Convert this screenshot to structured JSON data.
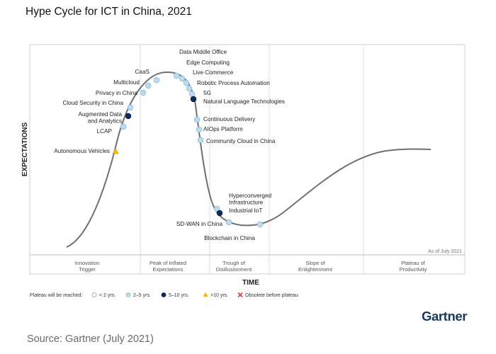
{
  "title": "Hype Cycle for ICT in China, 2021",
  "source": "Source: Gartner (July 2021)",
  "logo": "Gartner",
  "colors": {
    "lt2": "#ffffff",
    "2to5": "#b9dcf0",
    "5to10": "#0f2b5b",
    "gt10": "#f2b705",
    "obsolete": "#e23b3b",
    "curve": "#707070"
  },
  "chart_data": {
    "type": "hype-cycle",
    "title": "Hype Cycle for ICT in China, 2021",
    "xlabel": "TIME",
    "ylabel": "EXPECTATIONS",
    "as_of": "As of July 2021",
    "phases": [
      "Innovation\nTrigger",
      "Peak of Inflated\nExpectations",
      "Trough of\nDisillusionment",
      "Slope of\nEnlightenment",
      "Plateau of\nProductivity"
    ],
    "legend": {
      "title": "Plateau will be reached:",
      "items": [
        {
          "key": "lt2",
          "label": "< 2 yrs."
        },
        {
          "key": "2to5",
          "label": "2–5 yrs."
        },
        {
          "key": "5to10",
          "label": "5–10 yrs."
        },
        {
          "key": "gt10",
          "label": ">10 yrs."
        },
        {
          "key": "obsolete",
          "label": "Obsolete before plateau"
        }
      ]
    },
    "technologies": [
      {
        "name": "Autonomous Vehicles",
        "phase": "Innovation Trigger",
        "plateau": "gt10"
      },
      {
        "name": "LCAP",
        "phase": "Innovation Trigger",
        "plateau": "2to5"
      },
      {
        "name": "Augmented Data\nand Analytics",
        "phase": "Innovation Trigger",
        "plateau": "5to10"
      },
      {
        "name": "Cloud Security in China",
        "phase": "Innovation Trigger",
        "plateau": "2to5"
      },
      {
        "name": "Privacy in China",
        "phase": "Innovation Trigger",
        "plateau": "2to5"
      },
      {
        "name": "Multicloud",
        "phase": "Peak of Inflated Expectations",
        "plateau": "2to5"
      },
      {
        "name": "CaaS",
        "phase": "Peak of Inflated Expectations",
        "plateau": "2to5"
      },
      {
        "name": "Data Middle Office",
        "phase": "Peak of Inflated Expectations",
        "plateau": "2to5"
      },
      {
        "name": "Edge Computing",
        "phase": "Peak of Inflated Expectations",
        "plateau": "2to5"
      },
      {
        "name": "Live Commerce",
        "phase": "Peak of Inflated Expectations",
        "plateau": "2to5"
      },
      {
        "name": "Robotic Process Automation",
        "phase": "Peak of Inflated Expectations",
        "plateau": "2to5"
      },
      {
        "name": "5G",
        "phase": "Peak of Inflated Expectations",
        "plateau": "2to5"
      },
      {
        "name": "Natural Language Technologies",
        "phase": "Peak of Inflated Expectations",
        "plateau": "5to10"
      },
      {
        "name": "Continuous Delivery",
        "phase": "Trough of Disillusionment",
        "plateau": "2to5"
      },
      {
        "name": "AIOps Platform",
        "phase": "Trough of Disillusionment",
        "plateau": "2to5"
      },
      {
        "name": "Community Cloud in China",
        "phase": "Trough of Disillusionment",
        "plateau": "2to5"
      },
      {
        "name": "Hyperconverged\nInfrastructure",
        "phase": "Trough of Disillusionment",
        "plateau": "2to5"
      },
      {
        "name": "Industrial IoT",
        "phase": "Trough of Disillusionment",
        "plateau": "5to10"
      },
      {
        "name": "SD-WAN in China",
        "phase": "Trough of Disillusionment",
        "plateau": "2to5"
      },
      {
        "name": "Blockchain in China",
        "phase": "Trough of Disillusionment",
        "plateau": "2to5"
      }
    ]
  }
}
